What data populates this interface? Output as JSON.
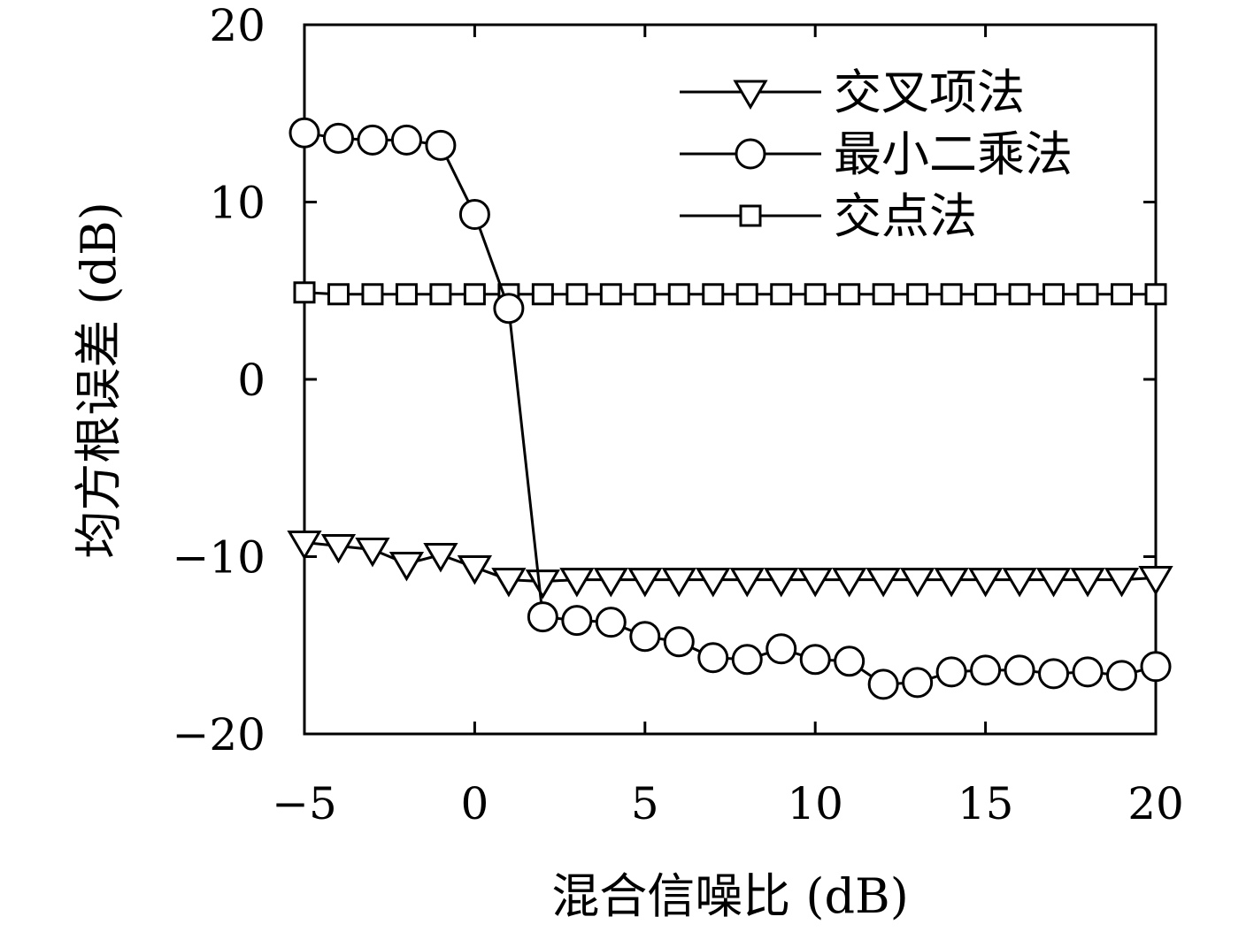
{
  "chart_data": {
    "type": "line",
    "title": "",
    "xlabel": "混合信噪比 (dB)",
    "ylabel": "均方根误差 (dB)",
    "xlim": [
      -5,
      20
    ],
    "ylim": [
      -20,
      20
    ],
    "xticks": [
      -5,
      0,
      5,
      10,
      15,
      20
    ],
    "yticks": [
      -20,
      -10,
      0,
      10,
      20
    ],
    "xtick_labels": [
      "−5",
      "0",
      "5",
      "10",
      "15",
      "20"
    ],
    "ytick_labels": [
      "−20",
      "−10",
      "0",
      "10",
      "20"
    ],
    "grid": false,
    "legend_position": "top-right",
    "x": [
      -5,
      -4,
      -3,
      -2,
      -1,
      0,
      1,
      2,
      3,
      4,
      5,
      6,
      7,
      8,
      9,
      10,
      11,
      12,
      13,
      14,
      15,
      16,
      17,
      18,
      19,
      20
    ],
    "series": [
      {
        "name": "交叉项法",
        "marker": "triangle-down",
        "color": "#000000",
        "values": [
          -9.2,
          -9.4,
          -9.6,
          -10.4,
          -9.9,
          -10.6,
          -11.3,
          -11.4,
          -11.3,
          -11.3,
          -11.3,
          -11.3,
          -11.3,
          -11.3,
          -11.3,
          -11.3,
          -11.3,
          -11.3,
          -11.3,
          -11.3,
          -11.3,
          -11.3,
          -11.3,
          -11.3,
          -11.3,
          -11.2
        ]
      },
      {
        "name": "最小二乘法",
        "marker": "circle",
        "color": "#000000",
        "values": [
          13.9,
          13.6,
          13.5,
          13.5,
          13.2,
          9.3,
          4.0,
          -13.4,
          -13.6,
          -13.7,
          -14.5,
          -14.8,
          -15.7,
          -15.8,
          -15.2,
          -15.8,
          -15.9,
          -17.2,
          -17.1,
          -16.5,
          -16.4,
          -16.4,
          -16.6,
          -16.5,
          -16.7,
          -16.2
        ]
      },
      {
        "name": "交点法",
        "marker": "square",
        "color": "#000000",
        "values": [
          4.9,
          4.8,
          4.8,
          4.8,
          4.8,
          4.8,
          4.8,
          4.8,
          4.8,
          4.8,
          4.8,
          4.8,
          4.8,
          4.8,
          4.8,
          4.8,
          4.8,
          4.8,
          4.8,
          4.8,
          4.8,
          4.8,
          4.8,
          4.8,
          4.8,
          4.8
        ]
      }
    ]
  }
}
